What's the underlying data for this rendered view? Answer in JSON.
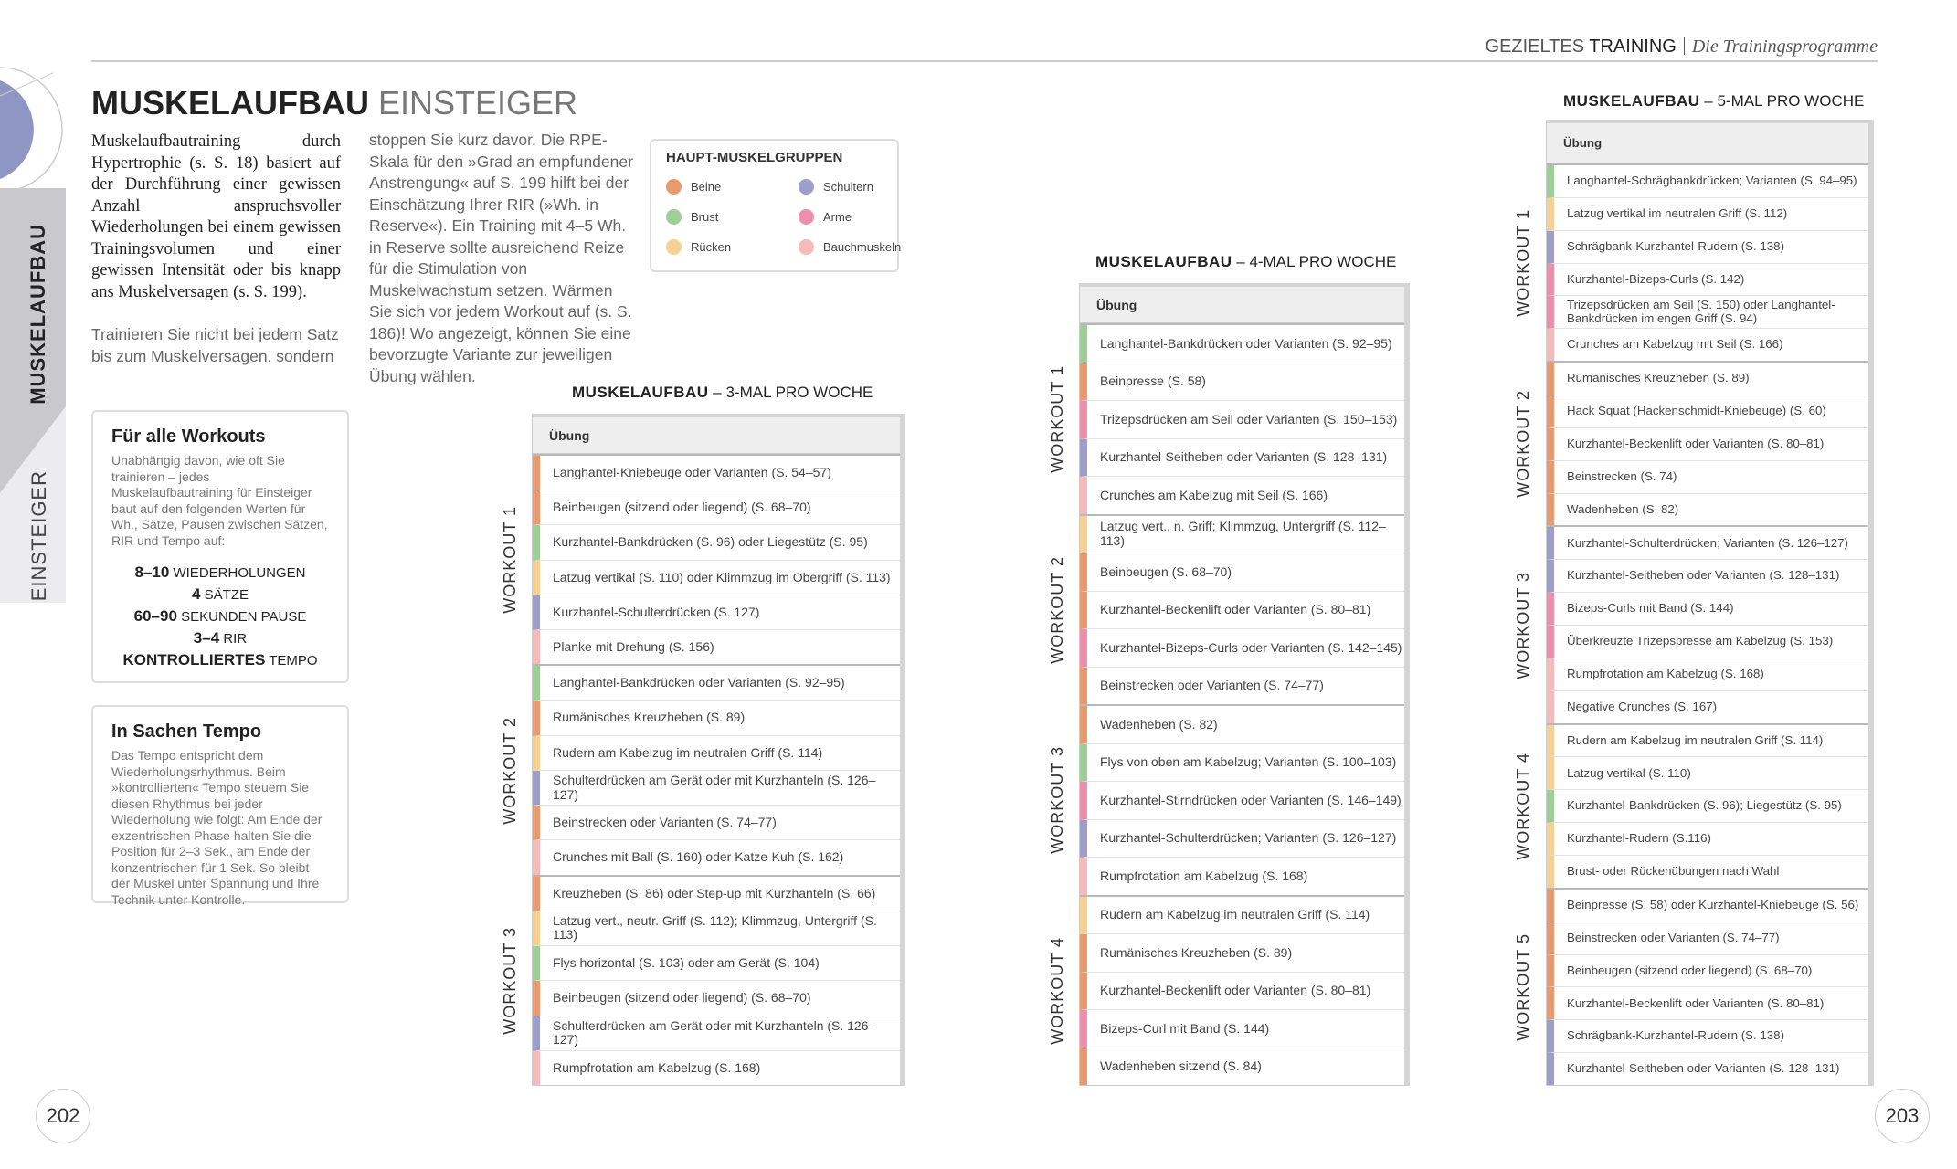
{
  "header": {
    "section_light": "GEZIELTES",
    "section_bold": "TRAINING",
    "subtitle": "Die Trainingsprogramme"
  },
  "side_tab": {
    "top": "MUSKELAUFBAU",
    "bottom": "EINSTEIGER"
  },
  "title": {
    "bold": "MUSKELAUFBAU",
    "light": "EINSTEIGER"
  },
  "intro": {
    "serif": "Muskelaufbautraining durch Hypertrophie (s. S. 18) basiert auf der Durchführung einer gewissen Anzahl anspruchsvoller Wiederholungen bei einem gewissen Trainingsvolumen und einer gewissen Intensität oder bis knapp ans Muskelversagen (s. S. 199).",
    "sans": "Trainieren Sie nicht bei jedem Satz bis zum Muskelversagen, sondern",
    "continued": "stoppen Sie kurz davor. Die RPE-Skala für den »Grad an empfundener Anstrengung« auf S. 199 hilft bei der Einschätzung Ihrer RIR (»Wh. in Reserve«). Ein Training mit 4–5 Wh. in Reserve sollte ausreichend Reize für die Stimulation von Muskelwachstum setzen. Wärmen Sie sich vor jedem Workout auf (s. S. 186)! Wo angezeigt, können Sie eine bevorzugte Variante zur jeweiligen Übung wählen."
  },
  "legend": {
    "title": "HAUPT-MUSKELGRUPPEN",
    "items": [
      {
        "label": "Beine",
        "color": "#ea9a70"
      },
      {
        "label": "Schultern",
        "color": "#9d9fca"
      },
      {
        "label": "Brust",
        "color": "#9fcf98"
      },
      {
        "label": "Arme",
        "color": "#ee8fae"
      },
      {
        "label": "Rücken",
        "color": "#f6d193"
      },
      {
        "label": "Bauchmuskeln",
        "color": "#f6baba"
      }
    ]
  },
  "box_workouts": {
    "title": "Für alle Workouts",
    "text": "Unabhängig davon, wie oft Sie trainieren – jedes Muskelaufbautraining für Einsteiger baut auf den folgenden Werten für Wh., Sätze, Pausen zwischen Sätzen, RIR und Tempo auf:",
    "stats": [
      {
        "value": "8–10",
        "label": "WIEDERHOLUNGEN"
      },
      {
        "value": "4",
        "label": "SÄTZE"
      },
      {
        "value": "60–90",
        "label": "SEKUNDEN PAUSE"
      },
      {
        "value": "3–4",
        "label": "RIR"
      },
      {
        "value": "KONTROLLIERTES",
        "label": "TEMPO"
      }
    ]
  },
  "box_tempo": {
    "title": "In Sachen Tempo",
    "text": "Das Tempo entspricht dem Wiederholungsrhythmus. Beim »kontrollierten« Tempo steuern Sie diesen Rhythmus bei jeder Wiederholung wie folgt: Am Ende der exzentrischen Phase halten Sie die Position für 2–3 Sek., am Ende der konzentrischen für 1 Sek. So bleibt der Muskel unter Spannung und Ihre Technik unter Kontrolle."
  },
  "tables": [
    {
      "title": "MUSKELAUFBAU",
      "subtitle": "3-MAL PRO WOCHE",
      "header": "Übung",
      "groups": [
        {
          "label": "WORKOUT 1",
          "rows": [
            {
              "text": "Langhantel-Kniebeuge  oder Varianten (S. 54–57)",
              "color": "#ea9a70"
            },
            {
              "text": "Beinbeugen (sitzend oder liegend) (S. 68–70)",
              "color": "#ea9a70"
            },
            {
              "text": "Kurzhantel-Bankdrücken (S. 96) oder Liegestütz  (S. 95)",
              "color": "#9fcf98"
            },
            {
              "text": "Latzug vertikal (S. 110) oder Klimmzug im Obergriff (S. 113)",
              "color": "#f6d193"
            },
            {
              "text": "Kurzhantel-Schulterdrücken (S. 127)",
              "color": "#9d9fca"
            },
            {
              "text": "Planke mit Drehung  (S. 156)",
              "color": "#f6baba"
            }
          ]
        },
        {
          "label": "WORKOUT 2",
          "rows": [
            {
              "text": "Langhantel-Bankdrücken oder Varianten  (S. 92–95)",
              "color": "#9fcf98"
            },
            {
              "text": "Rumänisches Kreuzheben (S. 89)",
              "color": "#ea9a70"
            },
            {
              "text": "Rudern am Kabelzug im neutralen Griff (S. 114)",
              "color": "#f6d193"
            },
            {
              "text": "Schulterdrücken am Gerät oder mit Kurzhanteln  (S. 126–127)",
              "color": "#9d9fca"
            },
            {
              "text": "Beinstrecken oder Varianten (S. 74–77)",
              "color": "#ea9a70"
            },
            {
              "text": "Crunches mit Ball (S. 160) oder Katze-Kuh (S. 162)",
              "color": "#f6baba"
            }
          ]
        },
        {
          "label": "WORKOUT 3",
          "rows": [
            {
              "text": "Kreuzheben (S. 86) oder Step-up mit Kurzhanteln (S. 66)",
              "color": "#ea9a70"
            },
            {
              "text": "Latzug vert., neutr. Griff (S. 112); Klimmzug, Untergriff (S. 113)",
              "color": "#f6d193"
            },
            {
              "text": "Flys horizontal  (S. 103) oder am Gerät (S. 104)",
              "color": "#9fcf98"
            },
            {
              "text": "Beinbeugen (sitzend oder liegend) (S. 68–70)",
              "color": "#ea9a70"
            },
            {
              "text": "Schulterdrücken am Gerät oder mit Kurzhanteln (S. 126–127)",
              "color": "#9d9fca"
            },
            {
              "text": "Rumpfrotation am Kabelzug (S. 168)",
              "color": "#f6baba"
            }
          ]
        }
      ]
    },
    {
      "title": "MUSKELAUFBAU",
      "subtitle": "4-MAL PRO WOCHE",
      "header": "Übung",
      "groups": [
        {
          "label": "WORKOUT 1",
          "rows": [
            {
              "text": "Langhantel-Bankdrücken oder Varianten (S. 92–95)",
              "color": "#9fcf98"
            },
            {
              "text": "Beinpresse  (S. 58)",
              "color": "#ea9a70"
            },
            {
              "text": "Trizepsdrücken am Seil oder Varianten (S. 150–153)",
              "color": "#ee8fae"
            },
            {
              "text": "Kurzhantel-Seitheben oder Varianten (S. 128–131)",
              "color": "#9d9fca"
            },
            {
              "text": "Crunches am Kabelzug mit Seil (S. 166)",
              "color": "#f6baba"
            }
          ]
        },
        {
          "label": "WORKOUT 2",
          "rows": [
            {
              "text": "Latzug vert., n. Griff; Klimmzug, Untergriff (S. 112–113)",
              "color": "#f6d193"
            },
            {
              "text": "Beinbeugen (S. 68–70)",
              "color": "#ea9a70"
            },
            {
              "text": "Kurzhantel-Beckenlift oder Varianten (S. 80–81)",
              "color": "#ea9a70"
            },
            {
              "text": "Kurzhantel-Bizeps-Curls oder Varianten (S. 142–145)",
              "color": "#ee8fae"
            },
            {
              "text": "Beinstrecken oder Varianten (S. 74–77)",
              "color": "#ea9a70"
            }
          ]
        },
        {
          "label": "WORKOUT 3",
          "rows": [
            {
              "text": "Wadenheben (S. 82)",
              "color": "#ea9a70"
            },
            {
              "text": "Flys von oben am Kabelzug; Varianten (S. 100–103)",
              "color": "#9fcf98"
            },
            {
              "text": "Kurzhantel-Stirndrücken oder Varianten  (S. 146–149)",
              "color": "#ee8fae"
            },
            {
              "text": "Kurzhantel-Schulterdrücken; Varianten  (S. 126–127)",
              "color": "#9d9fca"
            },
            {
              "text": "Rumpfrotation am Kabelzug (S. 168)",
              "color": "#f6baba"
            }
          ]
        },
        {
          "label": "WORKOUT 4",
          "rows": [
            {
              "text": "Rudern am Kabelzug im neutralen Griff (S. 114)",
              "color": "#f6d193"
            },
            {
              "text": "Rumänisches Kreuzheben (S. 89)",
              "color": "#ea9a70"
            },
            {
              "text": "Kurzhantel-Beckenlift oder Varianten (S. 80–81)",
              "color": "#ea9a70"
            },
            {
              "text": "Bizeps-Curl mit Band (S. 144)",
              "color": "#ee8fae"
            },
            {
              "text": "Wadenheben sitzend (S. 84)",
              "color": "#ea9a70"
            }
          ]
        }
      ]
    },
    {
      "title": "MUSKELAUFBAU",
      "subtitle": "5-MAL PRO WOCHE",
      "header": "Übung",
      "groups": [
        {
          "label": "WORKOUT 1",
          "rows": [
            {
              "text": "Langhantel-Schrägbankdrücken; Varianten (S. 94–95)",
              "color": "#9fcf98"
            },
            {
              "text": "Latzug vertikal im neutralen Griff  (S. 112)",
              "color": "#f6d193"
            },
            {
              "text": "Schrägbank-Kurzhantel-Rudern (S. 138)",
              "color": "#9d9fca"
            },
            {
              "text": "Kurzhantel-Bizeps-Curls (S. 142)",
              "color": "#ee8fae"
            },
            {
              "text": "Trizepsdrücken am Seil (S. 150) oder Langhantel-Bankdrücken im engen Griff  (S. 94)",
              "color": "#ee8fae"
            },
            {
              "text": "Crunches am Kabelzug mit Seil (S. 166)",
              "color": "#f6baba"
            }
          ]
        },
        {
          "label": "WORKOUT 2",
          "rows": [
            {
              "text": "Rumänisches Kreuzheben (S. 89)",
              "color": "#ea9a70"
            },
            {
              "text": "Hack Squat (Hackenschmidt-Kniebeuge) (S. 60)",
              "color": "#ea9a70"
            },
            {
              "text": "Kurzhantel-Beckenlift oder Varianten (S. 80–81)",
              "color": "#ea9a70"
            },
            {
              "text": "Beinstrecken (S. 74)",
              "color": "#ea9a70"
            },
            {
              "text": "Wadenheben (S. 82)",
              "color": "#ea9a70"
            }
          ]
        },
        {
          "label": "WORKOUT 3",
          "rows": [
            {
              "text": "Kurzhantel-Schulterdrücken; Varianten (S. 126–127)",
              "color": "#9d9fca"
            },
            {
              "text": "Kurzhantel-Seitheben oder Varianten (S. 128–131)",
              "color": "#9d9fca"
            },
            {
              "text": "Bizeps-Curls mit Band (S. 144)",
              "color": "#ee8fae"
            },
            {
              "text": "Überkreuzte Trizepspresse am Kabelzug (S. 153)",
              "color": "#ee8fae"
            },
            {
              "text": "Rumpfrotation am Kabelzug (S. 168)",
              "color": "#f6baba"
            },
            {
              "text": "Negative Crunches  (S. 167)",
              "color": "#f6baba"
            }
          ]
        },
        {
          "label": "WORKOUT 4",
          "rows": [
            {
              "text": "Rudern am Kabelzug im neutralen Griff (S. 114)",
              "color": "#f6d193"
            },
            {
              "text": "Latzug vertikal  (S. 110)",
              "color": "#f6d193"
            },
            {
              "text": "Kurzhantel-Bankdrücken  (S. 96); Liegestütz  (S. 95)",
              "color": "#9fcf98"
            },
            {
              "text": "Kurzhantel-Rudern (S.116)",
              "color": "#f6d193"
            },
            {
              "text": "Brust- oder Rückenübungen nach Wahl",
              "color": "#f6d193"
            }
          ]
        },
        {
          "label": "WORKOUT 5",
          "rows": [
            {
              "text": "Beinpresse  (S. 58) oder Kurzhantel-Kniebeuge (S. 56)",
              "color": "#ea9a70"
            },
            {
              "text": "Beinstrecken oder Varianten  (S. 74–77)",
              "color": "#ea9a70"
            },
            {
              "text": "Beinbeugen (sitzend oder liegend)  (S. 68–70)",
              "color": "#ea9a70"
            },
            {
              "text": "Kurzhantel-Beckenlift oder Varianten  (S. 80–81)",
              "color": "#ea9a70"
            },
            {
              "text": "Schrägbank-Kurzhantel-Rudern (S. 138)",
              "color": "#9d9fca"
            },
            {
              "text": "Kurzhantel-Seitheben oder Varianten  (S. 128–131)",
              "color": "#9d9fca"
            }
          ]
        }
      ]
    }
  ],
  "page_numbers": {
    "left": "202",
    "right": "203"
  }
}
